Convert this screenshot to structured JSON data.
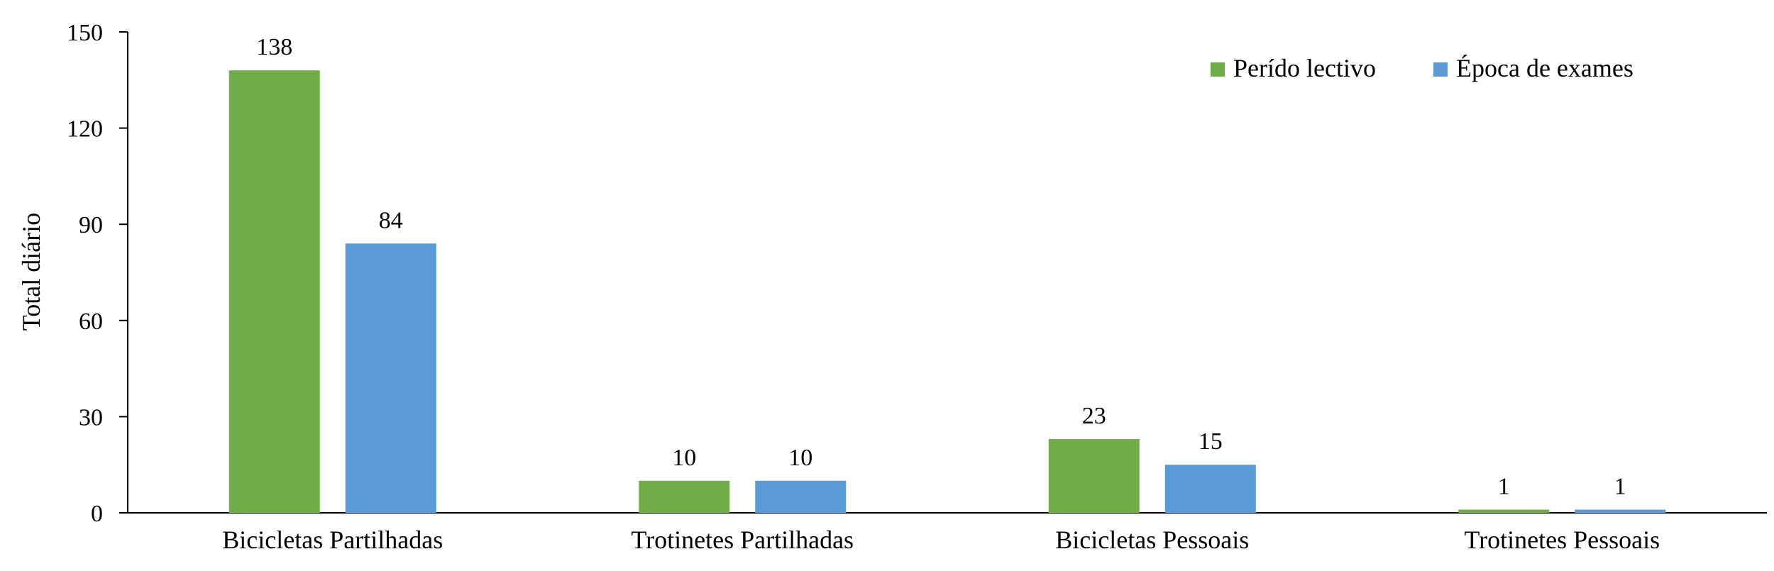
{
  "chart_data": {
    "type": "bar",
    "categories": [
      "Bicicletas Partilhadas",
      "Trotinetes Partilhadas",
      "Bicicletas Pessoais",
      "Trotinetes Pessoais"
    ],
    "series": [
      {
        "name": "Perído lectivo",
        "values": [
          138,
          10,
          23,
          1
        ],
        "color": "#70ad47"
      },
      {
        "name": "Época de exames",
        "values": [
          84,
          10,
          15,
          1
        ],
        "color": "#5b9bd5"
      }
    ],
    "ylabel": "Total diário",
    "xlabel": "",
    "ylim": [
      0,
      150
    ],
    "yticks": [
      0,
      30,
      60,
      90,
      120,
      150
    ],
    "legend_position": "top-right",
    "grid": false,
    "data_labels": true
  }
}
